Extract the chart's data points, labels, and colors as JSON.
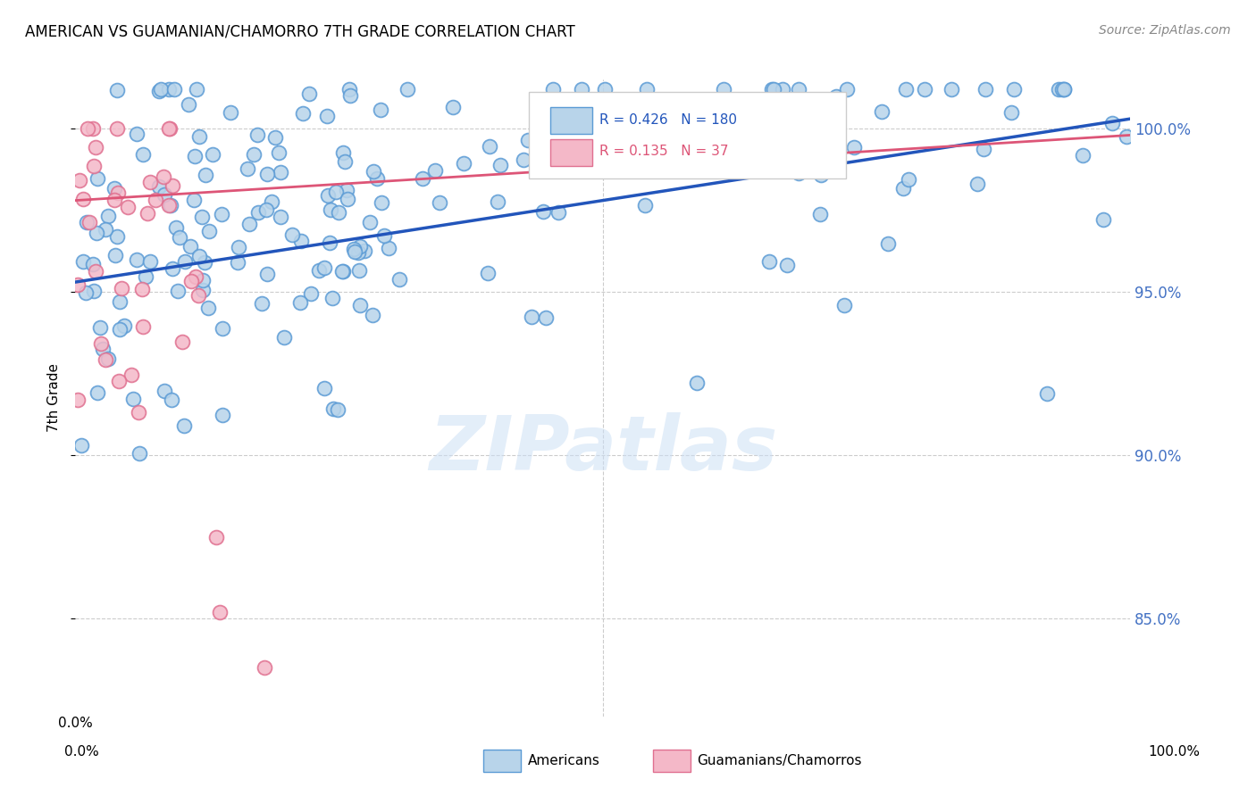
{
  "title": "AMERICAN VS GUAMANIAN/CHAMORRO 7TH GRADE CORRELATION CHART",
  "source": "Source: ZipAtlas.com",
  "ylabel": "7th Grade",
  "xlim": [
    0.0,
    100.0
  ],
  "ylim": [
    82.0,
    101.5
  ],
  "right_yticks": [
    85.0,
    90.0,
    95.0,
    100.0
  ],
  "right_ytick_labels": [
    "85.0%",
    "90.0%",
    "95.0%",
    "100.0%"
  ],
  "blue_R": 0.426,
  "blue_N": 180,
  "pink_R": 0.135,
  "pink_N": 37,
  "blue_color": "#b8d4ea",
  "blue_edge_color": "#5b9bd5",
  "pink_color": "#f4b8c8",
  "pink_edge_color": "#e07090",
  "blue_line_color": "#2255bb",
  "pink_line_color": "#dd5577",
  "legend_blue_label": "Americans",
  "legend_pink_label": "Guamanians/Chamorros",
  "blue_trend_x": [
    0.0,
    100.0
  ],
  "blue_trend_y": [
    95.3,
    100.3
  ],
  "pink_trend_x": [
    0.0,
    100.0
  ],
  "pink_trend_y": [
    97.8,
    99.8
  ],
  "watermark": "ZIPatlas"
}
